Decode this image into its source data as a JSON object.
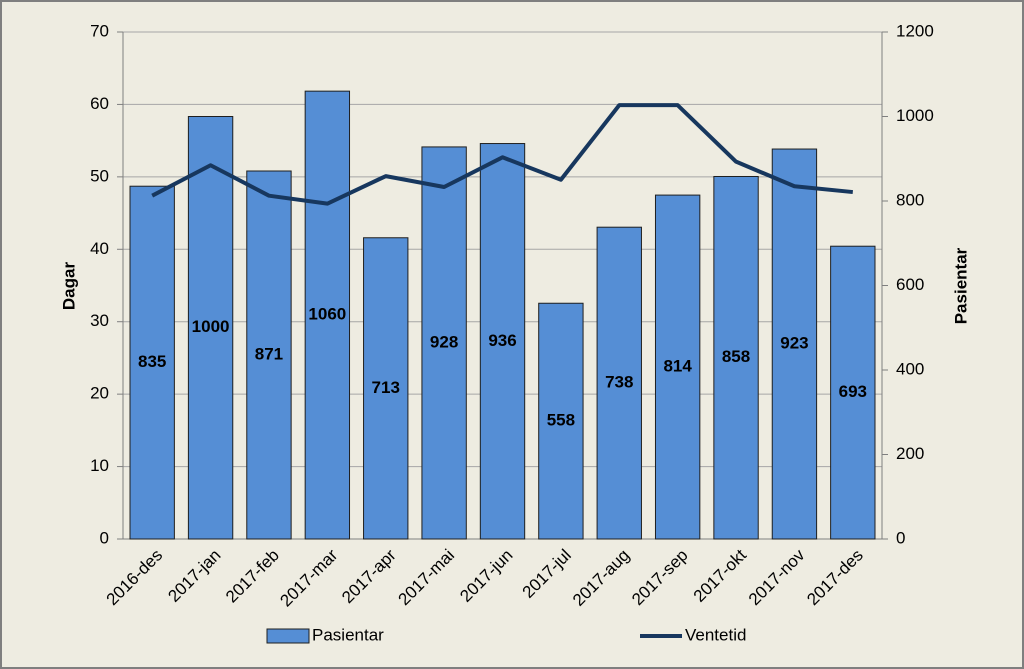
{
  "chart_data": {
    "type": "bar-line",
    "categories": [
      "2016-des",
      "2017-jan",
      "2017-feb",
      "2017-mar",
      "2017-apr",
      "2017-mai",
      "2017-jun",
      "2017-jul",
      "2017-aug",
      "2017-sep",
      "2017-okt",
      "2017-nov",
      "2017-des"
    ],
    "y_label": "Dagar",
    "y2_label": "Pasientar",
    "ylim": [
      0,
      70
    ],
    "yticks": [
      0,
      10,
      20,
      30,
      40,
      50,
      60,
      70
    ],
    "y2lim": [
      0,
      1200
    ],
    "y2ticks": [
      0,
      200,
      400,
      600,
      800,
      1000,
      1200
    ],
    "grid": true,
    "legend": "bottom",
    "series": [
      {
        "name": "Pasientar",
        "type": "bar",
        "axis": "y2",
        "color": "#558ed5",
        "values": [
          835,
          1000,
          871,
          1060,
          713,
          928,
          936,
          558,
          738,
          814,
          858,
          923,
          693
        ]
      },
      {
        "name": "Ventetid",
        "type": "line",
        "axis": "y",
        "color": "#17375e",
        "values": [
          47.4,
          51.6,
          47.4,
          46.3,
          50.1,
          48.6,
          52.7,
          49.6,
          59.9,
          59.9,
          52.1,
          48.7,
          47.9
        ]
      }
    ]
  }
}
